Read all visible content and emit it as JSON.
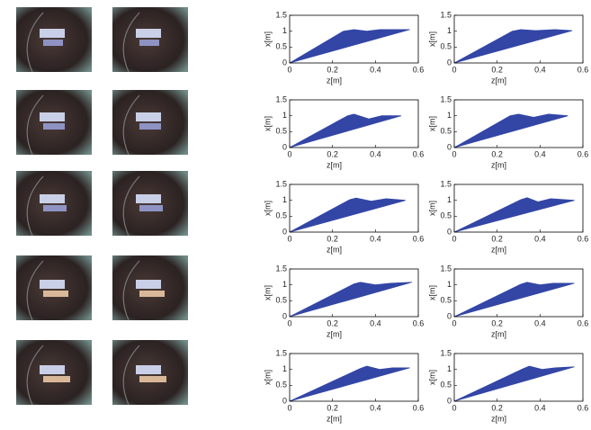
{
  "chart_data": [
    {
      "type": "polygon",
      "xlabel": "z[m]",
      "ylabel": "x[m]",
      "color": "#3346a6",
      "xlim": [
        0,
        0.6
      ],
      "xticks": [
        0,
        0.2,
        0.4,
        0.6
      ],
      "ylim": [
        0,
        1.5
      ],
      "yticks": [
        0,
        0.5,
        1,
        1.5
      ],
      "x": [
        0,
        0.25,
        0.3,
        0.36,
        0.42,
        0.56
      ],
      "values": [
        0,
        1.0,
        1.05,
        1.0,
        1.05,
        1.05
      ]
    },
    {
      "type": "polygon",
      "xlabel": "z[m]",
      "ylabel": "x[m]",
      "color": "#3346a6",
      "xlim": [
        0,
        0.6
      ],
      "xticks": [
        0,
        0.2,
        0.4,
        0.6
      ],
      "ylim": [
        0,
        1.5
      ],
      "yticks": [
        0,
        0.5,
        1,
        1.5
      ],
      "x": [
        0,
        0.27,
        0.31,
        0.38,
        0.47,
        0.55
      ],
      "values": [
        0,
        1.0,
        1.05,
        1.02,
        1.05,
        1.02
      ]
    },
    {
      "type": "polygon",
      "xlabel": "z[m]",
      "ylabel": "x[m]",
      "color": "#3346a6",
      "xlim": [
        0,
        0.6
      ],
      "xticks": [
        0,
        0.2,
        0.4,
        0.6
      ],
      "ylim": [
        0,
        1.5
      ],
      "yticks": [
        0,
        0.5,
        1,
        1.5
      ],
      "x": [
        0,
        0.27,
        0.3,
        0.37,
        0.43,
        0.52
      ],
      "values": [
        0,
        1.0,
        1.05,
        0.9,
        1.0,
        1.0
      ]
    },
    {
      "type": "polygon",
      "xlabel": "z[m]",
      "ylabel": "x[m]",
      "color": "#3346a6",
      "xlim": [
        0,
        0.6
      ],
      "xticks": [
        0,
        0.2,
        0.4,
        0.6
      ],
      "ylim": [
        0,
        1.5
      ],
      "yticks": [
        0,
        0.5,
        1,
        1.5
      ],
      "x": [
        0,
        0.26,
        0.3,
        0.37,
        0.44,
        0.53
      ],
      "values": [
        0,
        1.0,
        1.05,
        0.95,
        1.05,
        1.0
      ]
    },
    {
      "type": "polygon",
      "xlabel": "z[m]",
      "ylabel": "x[m]",
      "color": "#3346a6",
      "xlim": [
        0,
        0.6
      ],
      "xticks": [
        0,
        0.2,
        0.4,
        0.6
      ],
      "ylim": [
        0,
        1.5
      ],
      "yticks": [
        0,
        0.5,
        1,
        1.5
      ],
      "x": [
        0,
        0.28,
        0.31,
        0.38,
        0.45,
        0.54
      ],
      "values": [
        0,
        1.02,
        1.07,
        0.97,
        1.05,
        1.0
      ]
    },
    {
      "type": "polygon",
      "xlabel": "z[m]",
      "ylabel": "x[m]",
      "color": "#3346a6",
      "xlim": [
        0,
        0.6
      ],
      "xticks": [
        0,
        0.2,
        0.4,
        0.6
      ],
      "ylim": [
        0,
        1.5
      ],
      "yticks": [
        0,
        0.5,
        1,
        1.5
      ],
      "x": [
        0,
        0.31,
        0.34,
        0.39,
        0.45,
        0.56
      ],
      "values": [
        0,
        1.02,
        1.08,
        0.95,
        1.05,
        1.0
      ]
    },
    {
      "type": "polygon",
      "xlabel": "z[m]",
      "ylabel": "x[m]",
      "color": "#3346a6",
      "xlim": [
        0,
        0.6
      ],
      "xticks": [
        0,
        0.2,
        0.4,
        0.6
      ],
      "ylim": [
        0,
        1.5
      ],
      "yticks": [
        0,
        0.5,
        1,
        1.5
      ],
      "x": [
        0,
        0.3,
        0.33,
        0.4,
        0.47,
        0.57
      ],
      "values": [
        0,
        1.03,
        1.08,
        1.0,
        1.05,
        1.08
      ]
    },
    {
      "type": "polygon",
      "xlabel": "z[m]",
      "ylabel": "x[m]",
      "color": "#3346a6",
      "xlim": [
        0,
        0.6
      ],
      "xticks": [
        0,
        0.2,
        0.4,
        0.6
      ],
      "ylim": [
        0,
        1.5
      ],
      "yticks": [
        0,
        0.5,
        1,
        1.5
      ],
      "x": [
        0,
        0.31,
        0.34,
        0.4,
        0.46,
        0.56
      ],
      "values": [
        0,
        1.02,
        1.08,
        1.0,
        1.05,
        1.05
      ]
    },
    {
      "type": "polygon",
      "xlabel": "z[m]",
      "ylabel": "x[m]",
      "color": "#3346a6",
      "xlim": [
        0,
        0.6
      ],
      "xticks": [
        0,
        0.2,
        0.4,
        0.6
      ],
      "ylim": [
        0,
        1.5
      ],
      "yticks": [
        0,
        0.5,
        1,
        1.5
      ],
      "x": [
        0,
        0.33,
        0.36,
        0.42,
        0.48,
        0.56
      ],
      "values": [
        0,
        1.03,
        1.1,
        1.0,
        1.05,
        1.05
      ]
    },
    {
      "type": "polygon",
      "xlabel": "z[m]",
      "ylabel": "x[m]",
      "color": "#3346a6",
      "xlim": [
        0,
        0.6
      ],
      "xticks": [
        0,
        0.2,
        0.4,
        0.6
      ],
      "ylim": [
        0,
        1.5
      ],
      "yticks": [
        0,
        0.5,
        1,
        1.5
      ],
      "x": [
        0,
        0.32,
        0.35,
        0.41,
        0.47,
        0.56
      ],
      "values": [
        0,
        1.02,
        1.1,
        1.0,
        1.05,
        1.08
      ]
    }
  ]
}
